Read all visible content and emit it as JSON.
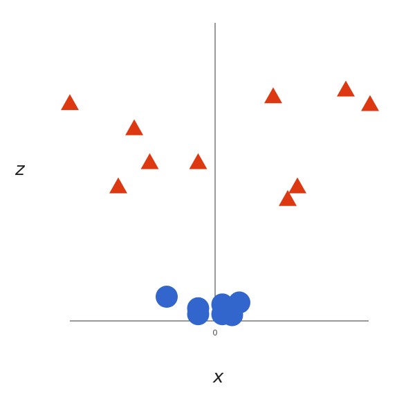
{
  "chart_data": {
    "type": "scatter",
    "title": "",
    "xlabel": "x",
    "ylabel": "z",
    "xlim": [
      -3.0,
      3.1
    ],
    "ylim": [
      0,
      3.1
    ],
    "grid": false,
    "legend": "none",
    "x_ticks": [
      0
    ],
    "series": [
      {
        "marker": "triangle",
        "color": "#dc3912",
        "points": [
          [
            -3.0,
            2.26
          ],
          [
            -1.67,
            2.0
          ],
          [
            -1.35,
            1.65
          ],
          [
            -0.35,
            1.65
          ],
          [
            -2.0,
            1.4
          ],
          [
            1.2,
            2.33
          ],
          [
            2.7,
            2.4
          ],
          [
            3.2,
            2.25
          ],
          [
            1.7,
            1.4
          ],
          [
            1.5,
            1.27
          ]
        ]
      },
      {
        "marker": "circle",
        "color": "#3366cc",
        "points": [
          [
            -1.0,
            0.25
          ],
          [
            -0.35,
            0.13
          ],
          [
            -0.35,
            0.07
          ],
          [
            0.15,
            0.17
          ],
          [
            0.5,
            0.19
          ],
          [
            0.15,
            0.07
          ],
          [
            0.35,
            0.06
          ]
        ]
      }
    ]
  }
}
